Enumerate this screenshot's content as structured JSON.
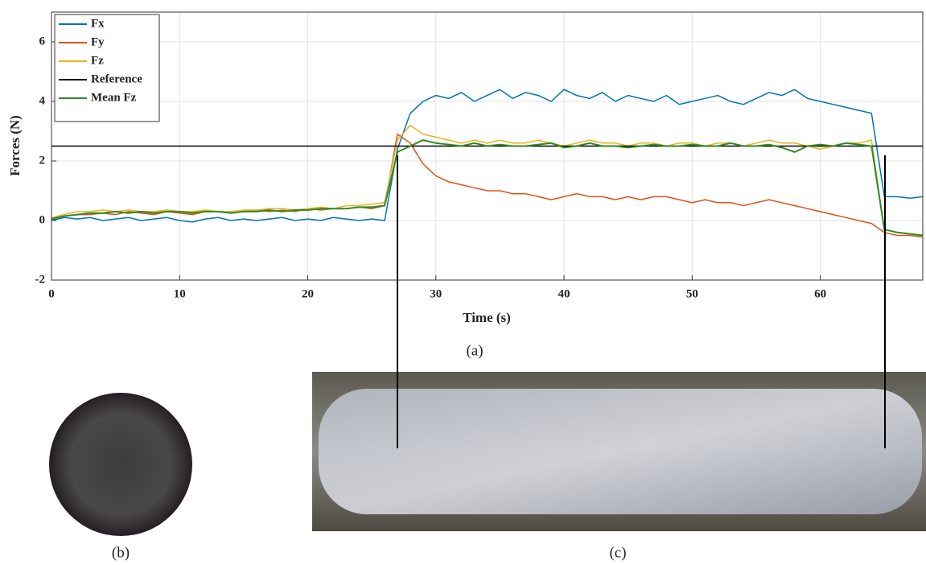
{
  "chart_data": {
    "type": "line",
    "xlabel": "Time (s)",
    "ylabel": "Forces (N)",
    "xlim": [
      0,
      68
    ],
    "ylim": [
      -2,
      7
    ],
    "xticks": [
      0,
      10,
      20,
      30,
      40,
      50,
      60
    ],
    "yticks": [
      -2,
      0,
      2,
      4,
      6
    ],
    "grid": true,
    "legend": "upper left",
    "x": [
      0,
      1,
      2,
      3,
      4,
      5,
      6,
      7,
      8,
      9,
      10,
      11,
      12,
      13,
      14,
      15,
      16,
      17,
      18,
      19,
      20,
      21,
      22,
      23,
      24,
      25,
      26,
      27,
      28,
      29,
      30,
      31,
      32,
      33,
      34,
      35,
      36,
      37,
      38,
      39,
      40,
      41,
      42,
      43,
      44,
      45,
      46,
      47,
      48,
      49,
      50,
      51,
      52,
      53,
      54,
      55,
      56,
      57,
      58,
      59,
      60,
      61,
      62,
      63,
      64,
      65,
      66,
      67,
      68
    ],
    "series": [
      {
        "name": "Fx",
        "color": "#0072bd",
        "values": [
          0,
          0.1,
          0.05,
          0.1,
          0.0,
          0.05,
          0.1,
          0.0,
          0.05,
          0.1,
          0.0,
          -0.05,
          0.05,
          0.1,
          0.0,
          0.05,
          0.0,
          0.05,
          0.1,
          0.0,
          0.05,
          0.0,
          0.1,
          0.05,
          0.0,
          0.05,
          0.0,
          2.4,
          3.6,
          4.0,
          4.2,
          4.1,
          4.3,
          4.0,
          4.2,
          4.4,
          4.1,
          4.3,
          4.2,
          4.0,
          4.4,
          4.2,
          4.1,
          4.3,
          4.0,
          4.2,
          4.1,
          4.0,
          4.2,
          3.9,
          4.0,
          4.1,
          4.2,
          4.0,
          3.9,
          4.1,
          4.3,
          4.2,
          4.4,
          4.1,
          4.0,
          3.9,
          3.8,
          3.7,
          3.6,
          0.8,
          0.8,
          0.75,
          0.8
        ]
      },
      {
        "name": "Fy",
        "color": "#d95319",
        "values": [
          0.1,
          0.15,
          0.2,
          0.2,
          0.25,
          0.2,
          0.3,
          0.25,
          0.2,
          0.3,
          0.25,
          0.2,
          0.3,
          0.3,
          0.25,
          0.3,
          0.35,
          0.3,
          0.35,
          0.3,
          0.4,
          0.35,
          0.4,
          0.4,
          0.45,
          0.4,
          0.5,
          2.9,
          2.6,
          1.9,
          1.5,
          1.3,
          1.2,
          1.1,
          1.0,
          1.0,
          0.9,
          0.9,
          0.8,
          0.7,
          0.8,
          0.9,
          0.8,
          0.8,
          0.7,
          0.8,
          0.7,
          0.8,
          0.8,
          0.7,
          0.6,
          0.7,
          0.6,
          0.6,
          0.5,
          0.6,
          0.7,
          0.6,
          0.5,
          0.4,
          0.3,
          0.2,
          0.1,
          0.0,
          -0.1,
          -0.4,
          -0.5,
          -0.5,
          -0.55
        ]
      },
      {
        "name": "Fz",
        "color": "#edb120",
        "values": [
          0.1,
          0.2,
          0.3,
          0.3,
          0.35,
          0.3,
          0.35,
          0.3,
          0.3,
          0.35,
          0.3,
          0.3,
          0.35,
          0.3,
          0.3,
          0.35,
          0.35,
          0.4,
          0.4,
          0.35,
          0.4,
          0.45,
          0.4,
          0.5,
          0.5,
          0.55,
          0.6,
          2.7,
          3.2,
          2.9,
          2.8,
          2.7,
          2.6,
          2.7,
          2.6,
          2.7,
          2.6,
          2.6,
          2.7,
          2.6,
          2.5,
          2.6,
          2.7,
          2.6,
          2.6,
          2.5,
          2.6,
          2.6,
          2.5,
          2.6,
          2.6,
          2.5,
          2.6,
          2.6,
          2.5,
          2.6,
          2.7,
          2.6,
          2.6,
          2.5,
          2.4,
          2.5,
          2.6,
          2.6,
          2.7,
          -0.3,
          -0.4,
          -0.45,
          -0.5
        ]
      },
      {
        "name": "Reference",
        "color": "#000000",
        "x": [
          0,
          68
        ],
        "values": [
          2.5,
          2.5
        ]
      },
      {
        "name": "Mean Fz",
        "color": "#2e8b22",
        "values": [
          0.05,
          0.15,
          0.2,
          0.25,
          0.25,
          0.3,
          0.25,
          0.3,
          0.25,
          0.3,
          0.3,
          0.25,
          0.3,
          0.3,
          0.25,
          0.3,
          0.3,
          0.35,
          0.3,
          0.35,
          0.35,
          0.4,
          0.4,
          0.4,
          0.45,
          0.45,
          0.5,
          2.3,
          2.5,
          2.7,
          2.6,
          2.55,
          2.5,
          2.6,
          2.5,
          2.55,
          2.5,
          2.5,
          2.55,
          2.6,
          2.45,
          2.5,
          2.6,
          2.5,
          2.5,
          2.45,
          2.5,
          2.55,
          2.5,
          2.5,
          2.55,
          2.5,
          2.5,
          2.6,
          2.5,
          2.5,
          2.55,
          2.45,
          2.3,
          2.5,
          2.55,
          2.5,
          2.6,
          2.55,
          2.5,
          -0.3,
          -0.4,
          -0.45,
          -0.5
        ]
      }
    ]
  },
  "panels": {
    "a": "(a)",
    "b": "(b)",
    "c": "(c)"
  }
}
